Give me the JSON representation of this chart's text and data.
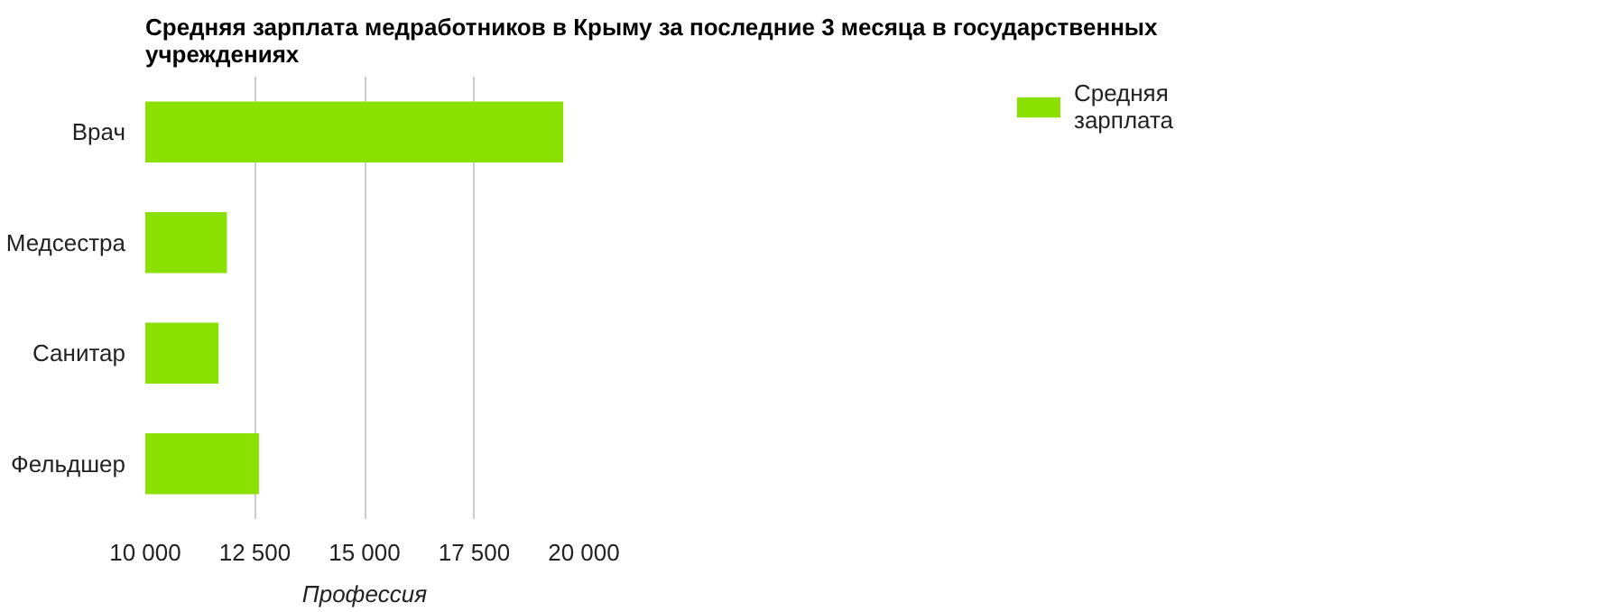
{
  "chart_data": {
    "type": "bar",
    "orientation": "horizontal",
    "title": "Средняя зарплата медработников в Крыму за последние 3 месяца в государственных учреждениях",
    "xlabel": "Профессия",
    "categories": [
      "Врач",
      "Медсестра",
      "Санитар",
      "Фельдшер"
    ],
    "series": [
      {
        "name": "Средняя зарплата",
        "color": "#8ae000",
        "values": [
          19530,
          11860,
          11670,
          12590
        ]
      }
    ],
    "xlim": [
      10000,
      20000
    ],
    "xticks": [
      {
        "value": 10000,
        "label": "10 000"
      },
      {
        "value": 12500,
        "label": "12 500"
      },
      {
        "value": 15000,
        "label": "15 000"
      },
      {
        "value": 17500,
        "label": "17 500"
      },
      {
        "value": 20000,
        "label": "20 000"
      }
    ],
    "grid": "x",
    "legend": "top right"
  }
}
